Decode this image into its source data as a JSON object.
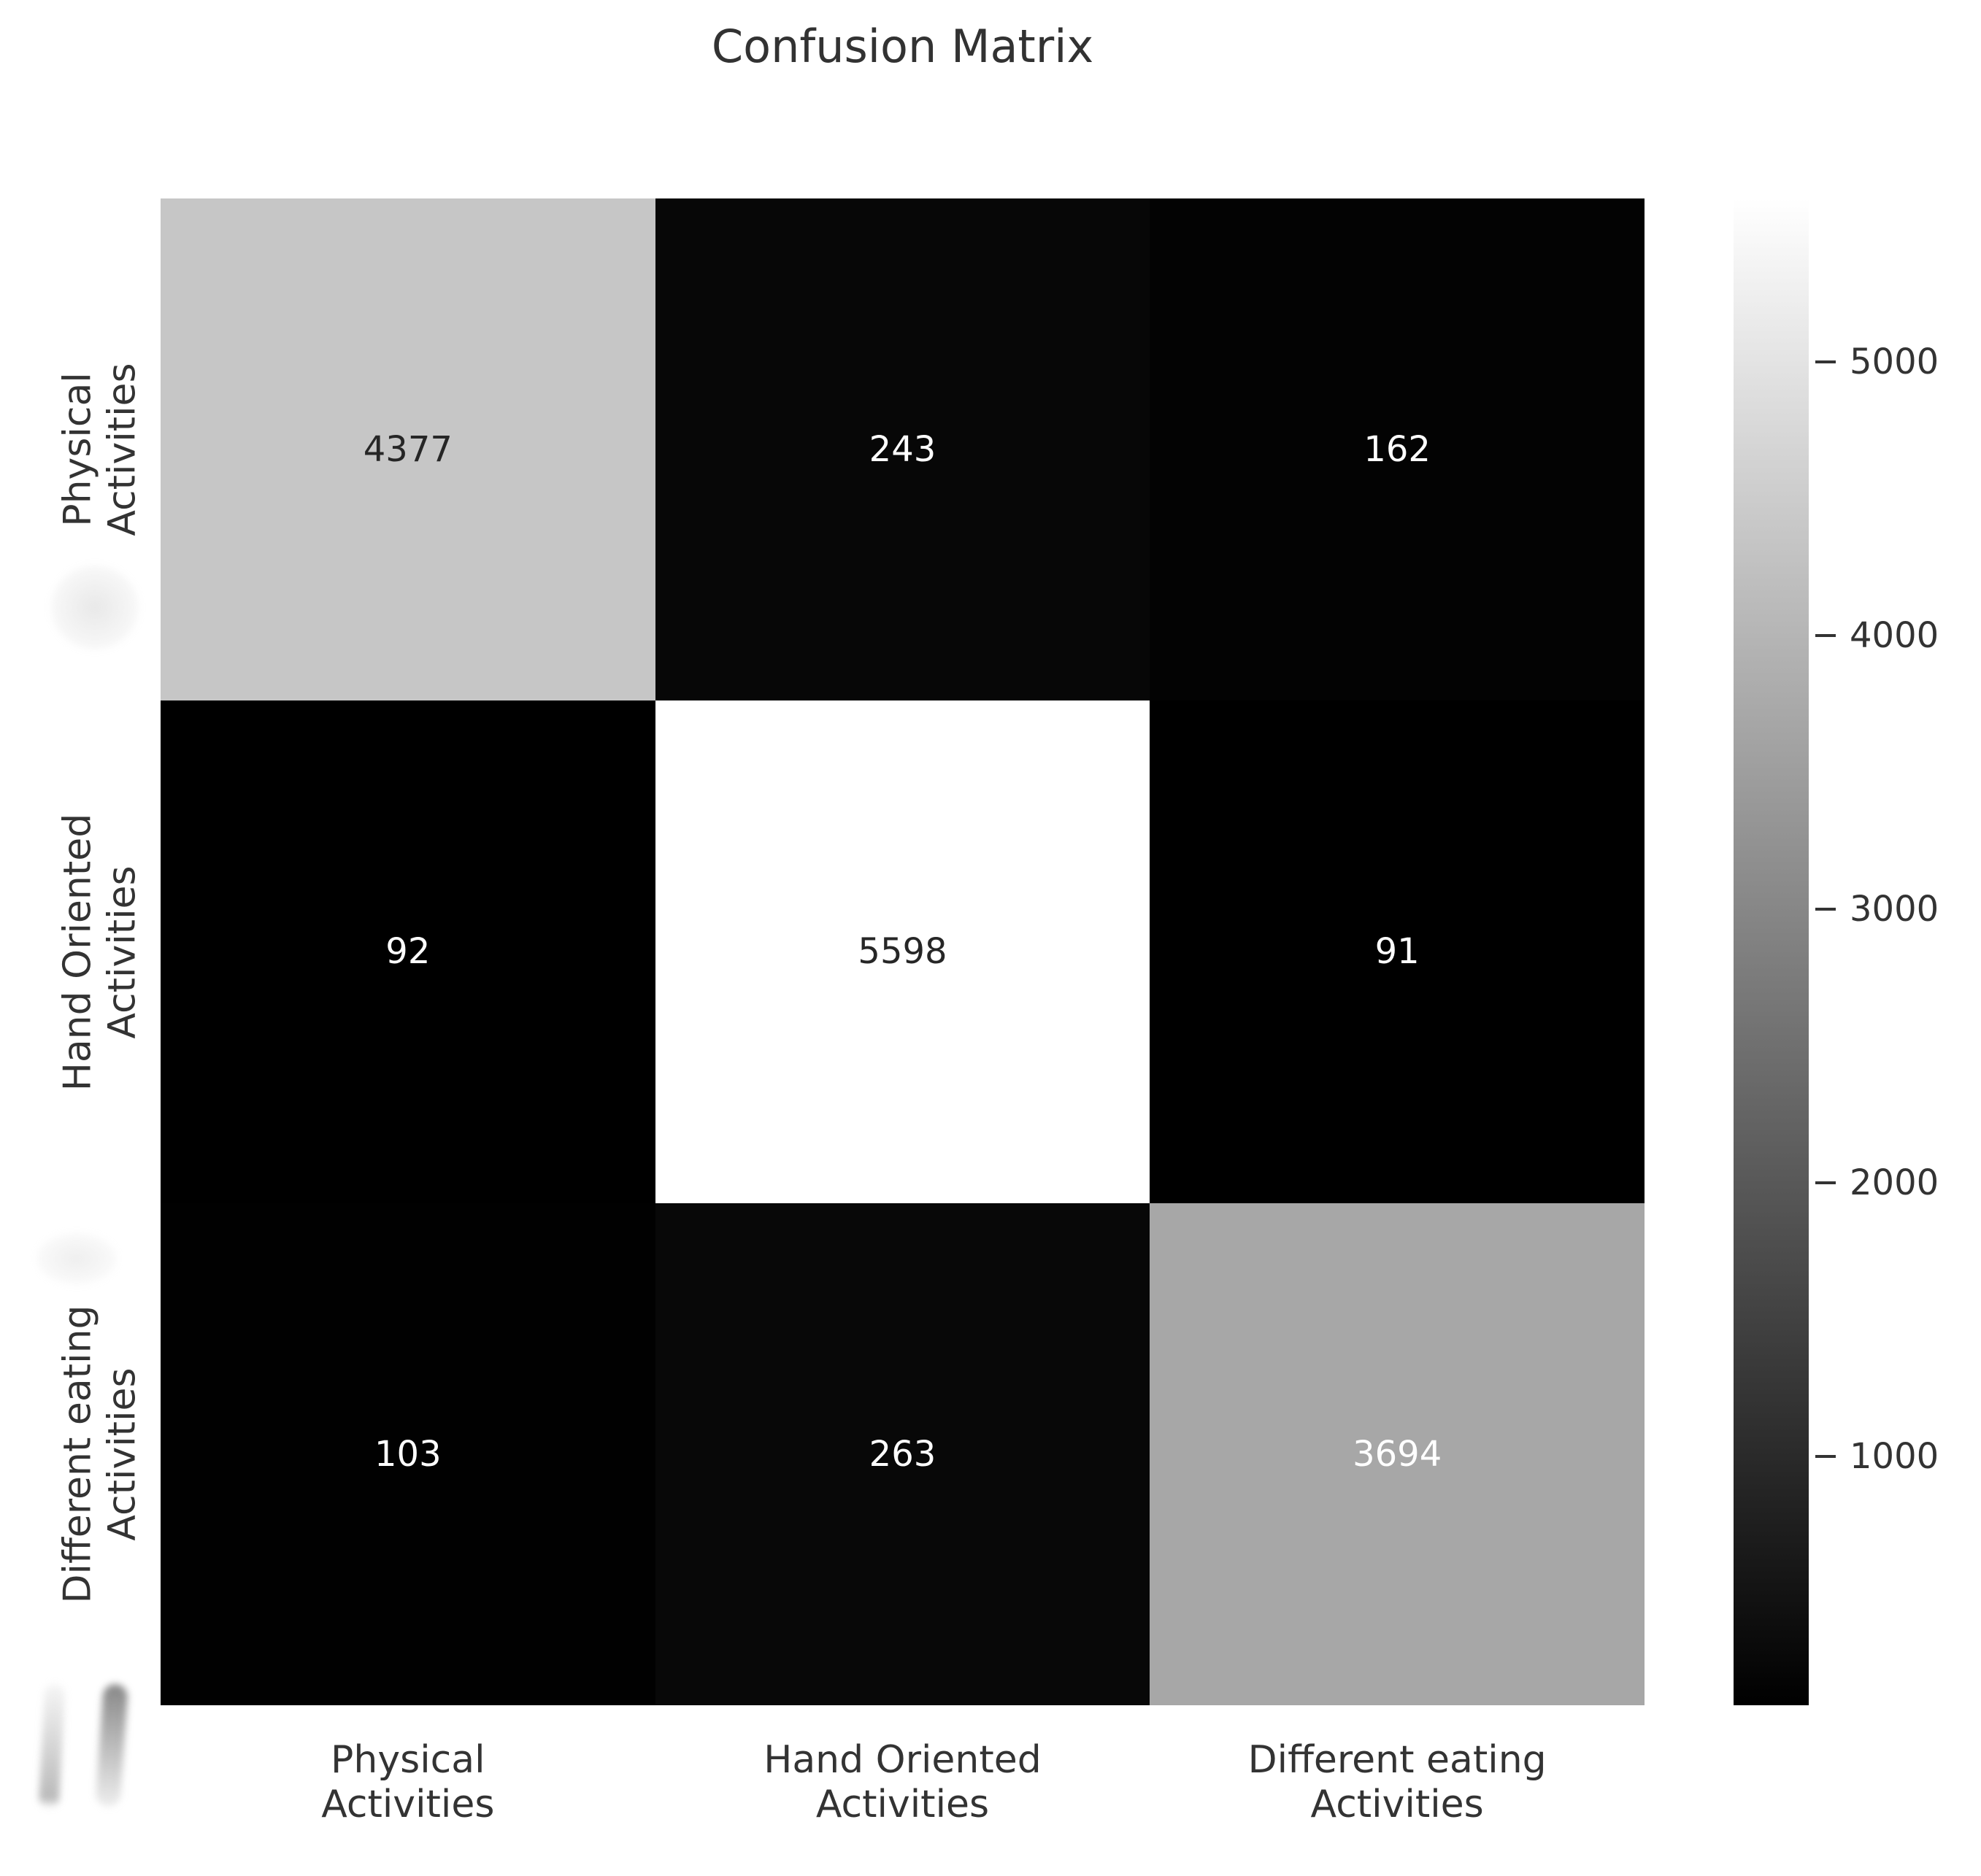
{
  "title": "Confusion Matrix",
  "chart_data": {
    "type": "heatmap",
    "title": "Confusion Matrix",
    "categories": [
      "Physical Activities",
      "Hand Oriented Activities",
      "Different eating Activities"
    ],
    "x_tick_labels": [
      [
        "Physical",
        "Activities"
      ],
      [
        "Hand Oriented",
        "Activities"
      ],
      [
        "Different eating",
        "Activities"
      ]
    ],
    "y_tick_labels": [
      [
        "Physical",
        "Activities"
      ],
      [
        "Hand Oriented",
        "Activities"
      ],
      [
        "Different eating",
        "Activities"
      ]
    ],
    "values": [
      [
        4377,
        243,
        162
      ],
      [
        92,
        5598,
        91
      ],
      [
        103,
        263,
        3694
      ]
    ],
    "colormap": "gray",
    "vmin": 91,
    "vmax": 5598,
    "colorbar_ticks": [
      5000,
      4000,
      3000,
      2000,
      1000
    ],
    "colorbar_position": "right",
    "grid": false,
    "annot_color_dark": "#262626",
    "annot_color_light": "#ffffff",
    "light_text_threshold_gray": 180
  },
  "colors": {
    "background": "#ffffff",
    "text": "#333333",
    "tick_dash": "#333333"
  }
}
